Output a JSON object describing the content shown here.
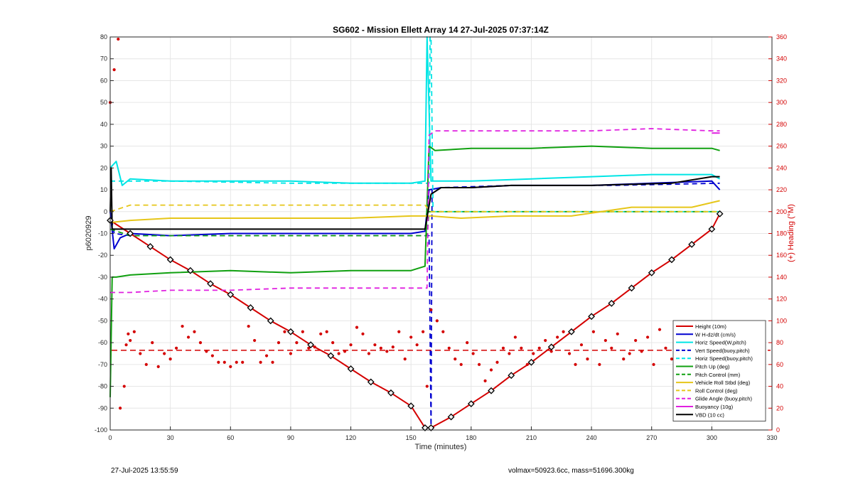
{
  "chart_data": {
    "type": "line",
    "title": "SG602 - Mission Ellett Array 14 27-Jul-2025 07:37:14Z",
    "xlabel": "Time (minutes)",
    "ylabel": "p6020929",
    "y2label": "(+) Heading (°M)",
    "xlim": [
      0,
      330
    ],
    "ylim": [
      -100,
      80
    ],
    "y2lim": [
      0,
      360
    ],
    "xticks": [
      "0",
      "30",
      "60",
      "90",
      "120",
      "150",
      "180",
      "210",
      "240",
      "270",
      "300",
      "330"
    ],
    "yticks": [
      "-100",
      "-90",
      "-80",
      "-70",
      "-60",
      "-50",
      "-40",
      "-30",
      "-20",
      "-10",
      "0",
      "10",
      "20",
      "30",
      "40",
      "50",
      "60",
      "70",
      "80"
    ],
    "y2ticks": [
      "0",
      "20",
      "40",
      "60",
      "80",
      "100",
      "120",
      "140",
      "160",
      "180",
      "200",
      "220",
      "240",
      "260",
      "280",
      "300",
      "320",
      "340",
      "360"
    ],
    "grid": true,
    "legend_position": "bottom-right",
    "legend": [
      {
        "label": "Height (10m)",
        "color": "#d40000",
        "style": "solid"
      },
      {
        "label": "W H-dz/dt (cm/s)",
        "color": "#0000d0",
        "style": "solid"
      },
      {
        "label": "Horiz Speed(W,pitch)",
        "color": "#00e5e5",
        "style": "solid"
      },
      {
        "label": "Vert Speed(buoy,pitch)",
        "color": "#0000d0",
        "style": "dashed"
      },
      {
        "label": "Horiz Speed(buoy,pitch)",
        "color": "#00e5e5",
        "style": "dashed"
      },
      {
        "label": "Pitch Up (deg)",
        "color": "#10a010",
        "style": "solid"
      },
      {
        "label": "Pitch Control (mm)",
        "color": "#10a010",
        "style": "dashed"
      },
      {
        "label": "Vehicle Roll Stbd (deg)",
        "color": "#e6c619",
        "style": "solid"
      },
      {
        "label": "Roll Control (deg)",
        "color": "#e6c619",
        "style": "dashed"
      },
      {
        "label": "Glide Angle (buoy,pitch)",
        "color": "#e020e0",
        "style": "dashed"
      },
      {
        "label": "Buoyancy (10g)",
        "color": "#e020e0",
        "style": "solid"
      },
      {
        "label": "VBD (10 cc)",
        "color": "#000000",
        "style": "solid"
      }
    ],
    "heading_mean_deg": 73,
    "series": [
      {
        "name": "Height (10m)",
        "axis": "left",
        "color": "#d40000",
        "style": "solid",
        "x": [
          0,
          10,
          20,
          30,
          40,
          50,
          60,
          70,
          80,
          90,
          100,
          110,
          120,
          130,
          140,
          150,
          157,
          160,
          170,
          180,
          190,
          200,
          210,
          220,
          230,
          240,
          250,
          260,
          270,
          280,
          290,
          300,
          304
        ],
        "y": [
          -4,
          -10,
          -16,
          -22,
          -27,
          -33,
          -38,
          -44,
          -50,
          -55,
          -61,
          -66,
          -72,
          -78,
          -83,
          -89,
          -99,
          -99,
          -94,
          -88,
          -82,
          -75,
          -69,
          -62,
          -55,
          -48,
          -42,
          -35,
          -28,
          -22,
          -15,
          -8,
          -1
        ]
      },
      {
        "name": "W H-dz/dt (cm/s)",
        "axis": "left",
        "color": "#0000d0",
        "style": "solid",
        "x": [
          0,
          2,
          5,
          10,
          30,
          60,
          90,
          120,
          150,
          157,
          159,
          165,
          180,
          200,
          240,
          270,
          300,
          304
        ],
        "y": [
          0,
          -17,
          -12,
          -10,
          -11,
          -10,
          -10,
          -10,
          -10,
          -9,
          10,
          11,
          11,
          12,
          12,
          13,
          14,
          10
        ]
      },
      {
        "name": "Horiz Speed(W,pitch)",
        "axis": "left",
        "color": "#00e5e5",
        "style": "solid",
        "x": [
          0,
          3,
          6,
          10,
          30,
          60,
          90,
          120,
          150,
          157,
          158,
          160,
          165,
          180,
          210,
          240,
          270,
          300,
          304
        ],
        "y": [
          20,
          23,
          12,
          15,
          14,
          14,
          14,
          13,
          13,
          14,
          80,
          14,
          14,
          14,
          15,
          16,
          17,
          17,
          15
        ]
      },
      {
        "name": "Vert Speed(buoy,pitch)",
        "axis": "left",
        "color": "#0000d0",
        "style": "dashed",
        "x": [
          0,
          2,
          10,
          60,
          120,
          159,
          160,
          160.5,
          165,
          200,
          250,
          304
        ],
        "y": [
          0,
          -10,
          -11,
          -11,
          -11,
          -11,
          -100,
          10,
          11,
          12,
          12,
          13
        ]
      },
      {
        "name": "Horiz Speed(buoy,pitch)",
        "axis": "left",
        "color": "#00e5e5",
        "style": "dashed",
        "x": [
          0,
          5,
          30,
          90,
          159,
          159.5,
          160,
          161,
          200,
          250,
          304
        ],
        "y": [
          14,
          14,
          14,
          13,
          13,
          80,
          80,
          0,
          0,
          0,
          0
        ]
      },
      {
        "name": "Pitch Up (deg)",
        "axis": "left",
        "color": "#10a010",
        "style": "solid",
        "x": [
          0,
          1,
          3,
          10,
          30,
          60,
          90,
          120,
          150,
          157,
          159,
          162,
          180,
          210,
          240,
          270,
          300,
          304
        ],
        "y": [
          -85,
          -30,
          -30,
          -29,
          -28,
          -27,
          -28,
          -27,
          -27,
          -25,
          30,
          28,
          29,
          29,
          30,
          29,
          29,
          28
        ]
      },
      {
        "name": "Pitch Control (mm)",
        "axis": "left",
        "color": "#10a010",
        "style": "dashed",
        "x": [
          0,
          10,
          60,
          100,
          158,
          159,
          304
        ],
        "y": [
          -8,
          -11,
          -11,
          -11,
          -11,
          0,
          0
        ]
      },
      {
        "name": "Vehicle Roll Stbd (deg)",
        "axis": "left",
        "color": "#e6c619",
        "style": "solid",
        "x": [
          0,
          10,
          30,
          60,
          90,
          120,
          150,
          157,
          160,
          175,
          200,
          230,
          260,
          290,
          304
        ],
        "y": [
          -5,
          -4,
          -3,
          -3,
          -3,
          -3,
          -2,
          -2,
          -2,
          -3,
          -2,
          -2,
          2,
          2,
          5
        ]
      },
      {
        "name": "Roll Control (deg)",
        "axis": "left",
        "color": "#e6c619",
        "style": "dashed",
        "x": [
          0,
          10,
          40,
          80,
          120,
          157,
          160,
          200,
          250,
          304
        ],
        "y": [
          0,
          3,
          3,
          3,
          3,
          3,
          0,
          0,
          0,
          0
        ]
      },
      {
        "name": "Glide Angle (buoy,pitch)",
        "axis": "left",
        "color": "#e020e0",
        "style": "dashed",
        "x": [
          0,
          10,
          30,
          60,
          90,
          120,
          150,
          158,
          159,
          162,
          200,
          240,
          270,
          300,
          304
        ],
        "y": [
          -37,
          -37,
          -36,
          -36,
          -35,
          -35,
          -35,
          -35,
          35,
          37,
          37,
          37,
          38,
          37,
          37
        ]
      },
      {
        "name": "Buoyancy (10g)",
        "axis": "left",
        "color": "#e020e0",
        "style": "solid",
        "x": [
          300,
          304
        ],
        "y": [
          36,
          36
        ]
      },
      {
        "name": "VBD (10 cc)",
        "axis": "left",
        "color": "#000000",
        "style": "solid",
        "x": [
          0,
          0.5,
          1,
          10,
          60,
          120,
          157,
          160,
          165,
          180,
          200,
          240,
          280,
          300,
          304
        ],
        "y": [
          0,
          20,
          -8,
          -8,
          -8,
          -8,
          -8,
          8,
          11,
          11,
          12,
          12,
          13,
          16,
          16
        ]
      },
      {
        "name": "(+) Heading (°M)",
        "axis": "right",
        "color": "#d40000",
        "style": "dotted",
        "x": [
          0,
          2,
          4,
          5,
          7,
          8,
          9,
          10,
          12,
          15,
          18,
          21,
          24,
          27,
          30,
          33,
          36,
          39,
          42,
          45,
          48,
          51,
          54,
          57,
          60,
          63,
          66,
          69,
          72,
          75,
          78,
          81,
          84,
          87,
          90,
          93,
          96,
          99,
          102,
          105,
          108,
          111,
          114,
          117,
          120,
          123,
          126,
          129,
          132,
          135,
          138,
          141,
          144,
          147,
          150,
          153,
          156,
          158
        ],
        "y": [
          300,
          330,
          358,
          20,
          40,
          78,
          88,
          82,
          90,
          70,
          60,
          80,
          58,
          70,
          65,
          75,
          95,
          85,
          90,
          80,
          72,
          68,
          62,
          62,
          58,
          62,
          62,
          95,
          82,
          62,
          68,
          62,
          80,
          90,
          70,
          80,
          90,
          75,
          76,
          88,
          90,
          80,
          70,
          72,
          78,
          94,
          88,
          70,
          78,
          75,
          72,
          76,
          90,
          65,
          85,
          78,
          90,
          40
        ]
      },
      {
        "name": "(+) Heading (°M) after apogee",
        "axis": "right",
        "color": "#d40000",
        "style": "dotted",
        "x": [
          160,
          163,
          166,
          169,
          172,
          175,
          178,
          181,
          184,
          187,
          190,
          193,
          196,
          199,
          202,
          205,
          208,
          211,
          214,
          217,
          220,
          223,
          226,
          229,
          232,
          235,
          238,
          241,
          244,
          247,
          250,
          253,
          256,
          259,
          262,
          265,
          268,
          271,
          274,
          277,
          280,
          283,
          286,
          289,
          292,
          295,
          298,
          301,
          304
        ],
        "y": [
          110,
          100,
          90,
          75,
          65,
          60,
          80,
          70,
          60,
          45,
          55,
          62,
          75,
          70,
          85,
          75,
          60,
          70,
          75,
          82,
          72,
          85,
          90,
          70,
          60,
          78,
          65,
          90,
          60,
          82,
          75,
          88,
          65,
          70,
          82,
          72,
          85,
          60,
          92,
          75,
          65,
          85,
          62,
          55,
          70,
          80,
          95,
          62,
          45
        ]
      }
    ]
  },
  "footer": {
    "timestamp": "27-Jul-2025 13:55:59",
    "mass_info": "volmax=50923.6cc, mass=51696.300kg"
  }
}
